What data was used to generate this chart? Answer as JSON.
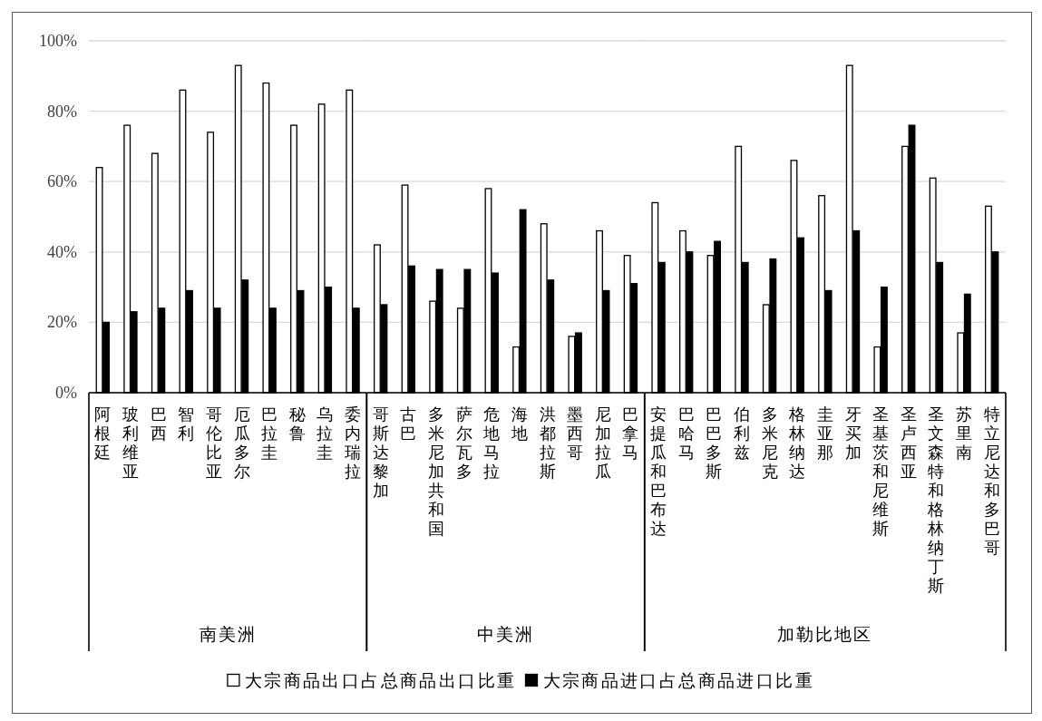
{
  "chart_data": [
    {
      "type": "bar",
      "categories": [
        "阿根廷",
        "玻利维亚",
        "巴西",
        "智利",
        "哥伦比亚",
        "厄瓜多尔",
        "巴拉圭",
        "秘鲁",
        "乌拉圭",
        "委内瑞拉"
      ],
      "xlabel": "南美洲",
      "series": [
        {
          "color": "#ffffff",
          "values": [
            64,
            76,
            68,
            86,
            74,
            93,
            88,
            76,
            82,
            86
          ]
        },
        {
          "color": "#000000",
          "values": [
            20,
            23,
            24,
            29,
            24,
            32,
            24,
            29,
            30,
            24
          ]
        }
      ],
      "ylim": [
        0,
        100
      ],
      "yticks": [
        {
          "value": 0,
          "label": "0%"
        },
        {
          "value": 20,
          "label": "20%"
        },
        {
          "value": 40,
          "label": "40%"
        },
        {
          "value": 60,
          "label": "60%"
        },
        {
          "value": 80,
          "label": "80%"
        },
        {
          "value": 100,
          "label": "100%"
        }
      ],
      "grid": "y"
    },
    {
      "type": "bar",
      "categories": [
        "哥斯达黎加",
        "古巴",
        "多米尼加共和国",
        "萨尔瓦多",
        "危地马拉",
        "海地",
        "洪都拉斯",
        "墨西哥",
        "尼加拉瓜",
        "巴拿马"
      ],
      "xlabel": "中美洲",
      "series": [
        {
          "name": "大宗商品出口占总商品出口比重",
          "color": "#ffffff",
          "values": [
            42,
            59,
            26,
            24,
            58,
            13,
            48,
            16,
            46,
            39
          ]
        },
        {
          "name": "大宗商品进口占总商品进口比重",
          "color": "#000000",
          "values": [
            25,
            36,
            35,
            35,
            34,
            52,
            32,
            17,
            29,
            31
          ]
        }
      ],
      "ylim": [
        0,
        100
      ],
      "yticks": [
        0,
        20,
        40,
        60,
        80,
        100
      ],
      "grid": "y",
      "tick_labels": "x",
      "legend": "bottom"
    },
    {
      "type": "bar",
      "categories": [
        "安提瓜和巴布达",
        "巴哈马",
        "巴巴多斯",
        "伯利兹",
        "多米尼克",
        "格林纳达",
        "圭亚那",
        "牙买加",
        "圣基茨和尼维斯",
        "圣卢西亚",
        "圣文森特和格林纳丁斯",
        "苏里南",
        "特立尼达和多巴哥"
      ],
      "xlabel": "加勒比地区",
      "series": [
        {
          "color": "#ffffff",
          "values": [
            54,
            46,
            39,
            70,
            25,
            66,
            56,
            93,
            13,
            70,
            61,
            17,
            53
          ]
        },
        {
          "color": "#000000",
          "values": [
            37,
            40,
            43,
            37,
            38,
            44,
            29,
            46,
            30,
            76,
            37,
            28,
            40
          ]
        }
      ],
      "ylim": [
        0,
        100
      ],
      "yticks": [
        0,
        20,
        40,
        60,
        80,
        100
      ],
      "grid": "y",
      "tick_labels": "x"
    }
  ]
}
